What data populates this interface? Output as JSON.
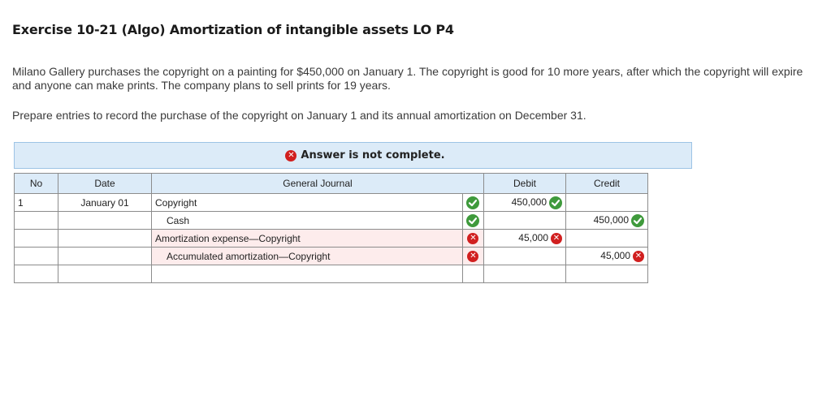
{
  "title": "Exercise 10-21 (Algo) Amortization of intangible assets LO P4",
  "paragraphs": {
    "p1": "Milano Gallery purchases the copyright on a painting for $450,000 on January 1. The copyright is good for 10 more years, after which the copyright will expire and anyone can make prints. The company plans to sell prints for 19 years.",
    "p2": "Prepare entries to record the purchase of the copyright on January 1 and its annual amortization on December 31."
  },
  "banner": {
    "text": "Answer is not complete."
  },
  "table": {
    "headers": {
      "no": "No",
      "date": "Date",
      "journal": "General Journal",
      "debit": "Debit",
      "credit": "Credit"
    },
    "rows": [
      {
        "no": "1",
        "date": "January 01",
        "account": "Copyright",
        "indent": false,
        "status": "correct",
        "debit": "450,000",
        "debit_status": "correct",
        "credit": "",
        "credit_status": ""
      },
      {
        "no": "",
        "date": "",
        "account": "Cash",
        "indent": true,
        "status": "correct",
        "debit": "",
        "debit_status": "",
        "credit": "450,000",
        "credit_status": "correct"
      },
      {
        "no": "",
        "date": "",
        "account": "Amortization expense—Copyright",
        "indent": false,
        "status": "incorrect",
        "debit": "45,000",
        "debit_status": "incorrect",
        "credit": "",
        "credit_status": ""
      },
      {
        "no": "",
        "date": "",
        "account": "Accumulated amortization—Copyright",
        "indent": true,
        "status": "incorrect",
        "debit": "",
        "debit_status": "",
        "credit": "45,000",
        "credit_status": "incorrect"
      },
      {
        "no": "",
        "date": "",
        "account": "",
        "indent": false,
        "status": "",
        "debit": "",
        "debit_status": "",
        "credit": "",
        "credit_status": ""
      }
    ]
  },
  "colors": {
    "correct": "#3f9a3c",
    "incorrect": "#d11f1f",
    "header_bg": "#dcebf8",
    "row_error_bg": "#fdecec"
  }
}
